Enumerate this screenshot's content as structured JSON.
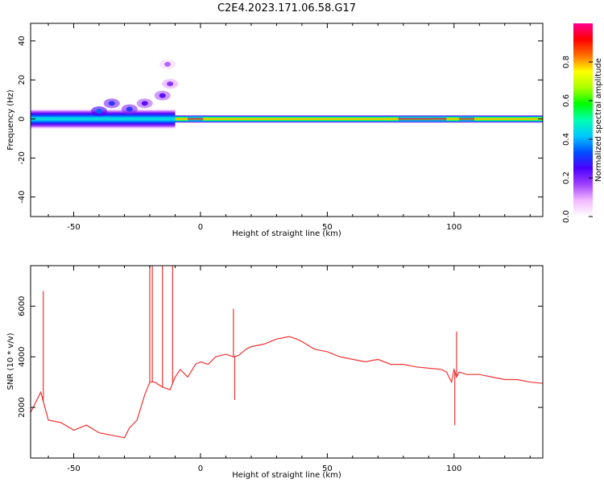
{
  "figure": {
    "title": "C2E4.2023.171.06.58.G17"
  },
  "colorbar": {
    "label": "Normalized spectral amplitude",
    "ticks": [
      0.0,
      0.2,
      0.4,
      0.6,
      0.8
    ],
    "tick_labels": [
      "0.0",
      "0.2",
      "0.4",
      "0.6",
      "0.8"
    ],
    "range": [
      0,
      1
    ],
    "colormap": [
      "#ffffff",
      "#f2b9ff",
      "#a040ff",
      "#4a00ff",
      "#0050ff",
      "#00c8ff",
      "#00ffb0",
      "#00ff00",
      "#aaff00",
      "#ffff00",
      "#ff7000",
      "#ff0000",
      "#ff0090"
    ]
  },
  "chart_data": [
    {
      "type": "heatmap",
      "xlabel": "Height of straight line (km)",
      "ylabel": "Frequency (Hz)",
      "xlim": [
        -67,
        135
      ],
      "ylim": [
        -50,
        49
      ],
      "xticks": [
        -50,
        0,
        50,
        100
      ],
      "xtick_labels": [
        "-50",
        "0",
        "50",
        "100"
      ],
      "yticks": [
        -40,
        -20,
        0,
        20,
        40
      ],
      "ytick_labels": [
        "-40",
        "-20",
        "0",
        "20",
        "40"
      ],
      "band": {
        "center_freq_hz": 0,
        "segments": [
          {
            "x_start": -67,
            "x_end": -10,
            "half_width_hz": 5,
            "peak_amplitude": 0.45
          },
          {
            "x_start": -10,
            "x_end": 135,
            "half_width_hz": 2,
            "peak_amplitude": 0.8
          },
          {
            "x_start": -5,
            "x_end": 1,
            "half_width_hz": 0.8,
            "peak_amplitude": 0.95
          },
          {
            "x_start": 78,
            "x_end": 97,
            "half_width_hz": 0.8,
            "peak_amplitude": 0.95
          },
          {
            "x_start": 102,
            "x_end": 108,
            "half_width_hz": 0.8,
            "peak_amplitude": 0.9
          }
        ]
      },
      "scatter_blobs": [
        {
          "x": -40,
          "y": 4,
          "amplitude": 0.25
        },
        {
          "x": -35,
          "y": 8,
          "amplitude": 0.2
        },
        {
          "x": -28,
          "y": 5,
          "amplitude": 0.2
        },
        {
          "x": -22,
          "y": 8,
          "amplitude": 0.15
        },
        {
          "x": -15,
          "y": 12,
          "amplitude": 0.15
        },
        {
          "x": -12,
          "y": 18,
          "amplitude": 0.1
        },
        {
          "x": -13,
          "y": 28,
          "amplitude": 0.05
        }
      ]
    },
    {
      "type": "line",
      "xlabel": "Height of straight line (km)",
      "ylabel": "SNR (10 * v/v)",
      "xlim": [
        -67,
        135
      ],
      "ylim": [
        0,
        7600
      ],
      "xticks": [
        -50,
        0,
        50,
        100
      ],
      "xtick_labels": [
        "-50",
        "0",
        "50",
        "100"
      ],
      "yticks": [
        2000,
        4000,
        6000
      ],
      "ytick_labels": [
        "2000",
        "4000",
        "6000"
      ],
      "color": "#ee3333",
      "series": [
        {
          "x": [
            -67,
            -63,
            -60,
            -55,
            -50,
            -45,
            -40,
            -35,
            -30,
            -28,
            -25,
            -22,
            -20,
            -18,
            -15,
            -12,
            -10,
            -8,
            -5,
            -2,
            0,
            3,
            6,
            10,
            13,
            15,
            18,
            20,
            25,
            30,
            35,
            38,
            40,
            45,
            50,
            55,
            60,
            65,
            70,
            75,
            80,
            85,
            90,
            95,
            97,
            99,
            100,
            101,
            102,
            105,
            110,
            115,
            120,
            125,
            130,
            135
          ],
          "y": [
            1800,
            2600,
            1500,
            1400,
            1100,
            1300,
            1000,
            900,
            800,
            1200,
            1500,
            2500,
            3000,
            3000,
            2800,
            2700,
            3200,
            3500,
            3200,
            3700,
            3800,
            3700,
            4000,
            4100,
            4000,
            4050,
            4300,
            4400,
            4500,
            4700,
            4800,
            4700,
            4600,
            4300,
            4200,
            4000,
            3900,
            3800,
            3900,
            3700,
            3700,
            3600,
            3550,
            3500,
            3400,
            3000,
            3500,
            3200,
            3400,
            3300,
            3300,
            3200,
            3100,
            3100,
            3000,
            2950
          ]
        }
      ],
      "spikes": [
        {
          "x": -62,
          "y": 6600
        },
        {
          "x": -20,
          "y": 7600
        },
        {
          "x": -19,
          "y": 7600
        },
        {
          "x": -15,
          "y": 7600
        },
        {
          "x": -11,
          "y": 7600
        },
        {
          "x": 13,
          "y": 5900
        },
        {
          "x": 13.5,
          "y": 2300
        },
        {
          "x": 101,
          "y": 5000
        },
        {
          "x": 100.3,
          "y": 1300
        }
      ]
    }
  ]
}
